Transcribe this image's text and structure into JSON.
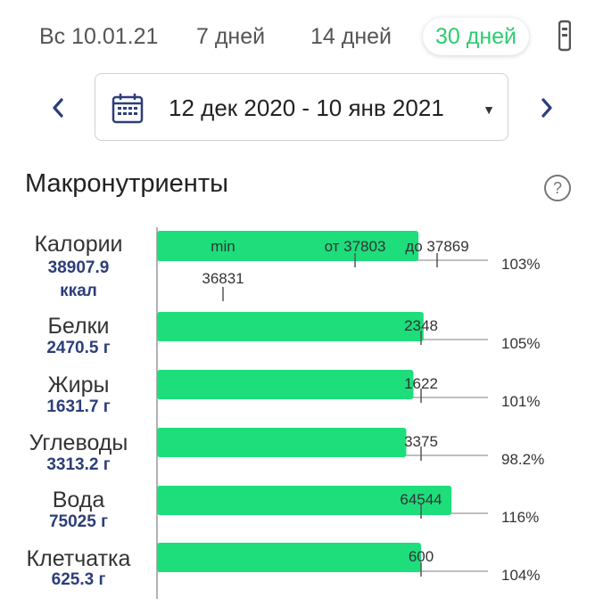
{
  "tabs": [
    {
      "label": "Вс 10.01.21",
      "active": false
    },
    {
      "label": "7 дней",
      "active": false
    },
    {
      "label": "14 дней",
      "active": false
    },
    {
      "label": "30 дней",
      "active": true
    }
  ],
  "date_range": {
    "label": "12 дек 2020 - 10 янв 2021",
    "prev_icon": "chevron-left-icon",
    "next_icon": "chevron-right-icon",
    "calendar_icon": "calendar-icon",
    "caret_icon": "caret-down-icon"
  },
  "section": {
    "title": "Макронутриенты",
    "help_icon": "help-icon",
    "help_glyph": "?"
  },
  "colors": {
    "bar": "#1dde7b",
    "accent": "#2ecc71",
    "value_text": "#2c3e7a",
    "axis": "#999999"
  },
  "macros": [
    {
      "name": "Калории",
      "value": "38907.9",
      "unit": "ккал",
      "unit_on_new_line": true,
      "percent": "103%",
      "fill": 1.03,
      "target_label": "",
      "min_label": "min",
      "min_value": "36831",
      "range_from": "от 37803",
      "range_to": "до 37869"
    },
    {
      "name": "Белки",
      "value": "2470.5 г",
      "unit": "",
      "unit_on_new_line": false,
      "percent": "105%",
      "fill": 1.05,
      "target_label": "2348"
    },
    {
      "name": "Жиры",
      "value": "1631.7 г",
      "unit": "",
      "unit_on_new_line": false,
      "percent": "101%",
      "fill": 1.01,
      "target_label": "1622"
    },
    {
      "name": "Углеводы",
      "value": "3313.2 г",
      "unit": "",
      "unit_on_new_line": false,
      "percent": "98.2%",
      "fill": 0.982,
      "target_label": "3375"
    },
    {
      "name": "Вода",
      "value": "75025 г",
      "unit": "",
      "unit_on_new_line": false,
      "percent": "116%",
      "fill": 1.16,
      "target_label": "64544"
    },
    {
      "name": "Клетчатка",
      "value": "625.3 г",
      "unit": "",
      "unit_on_new_line": false,
      "percent": "104%",
      "fill": 1.04,
      "target_label": "600"
    }
  ]
}
